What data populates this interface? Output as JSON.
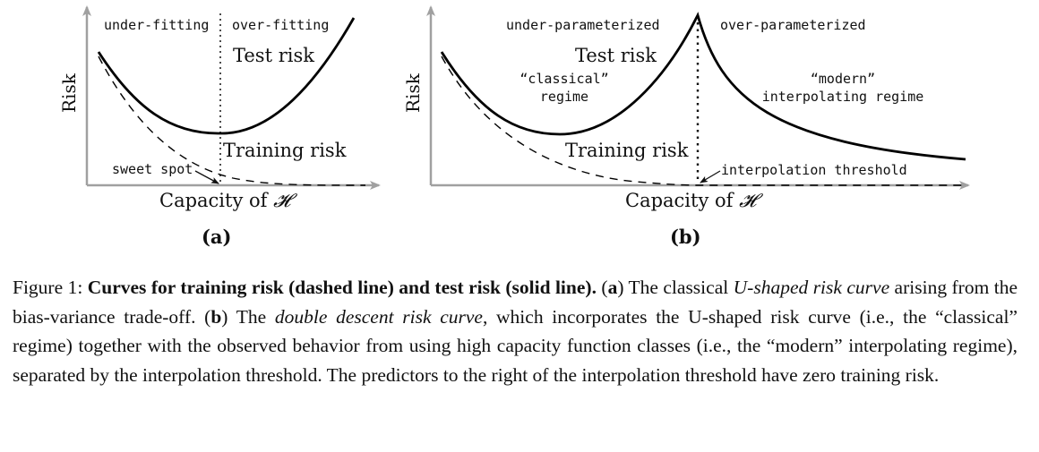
{
  "figure": {
    "panel_a": {
      "label": "(a)",
      "ylabel": "Risk",
      "xlabel_prefix": "Capacity of ",
      "xlabel_symbol": "𝓗",
      "left_region": "under-fitting",
      "right_region": "over-fitting",
      "test_label": "Test risk",
      "train_label": "Training risk",
      "annotation": "sweet spot"
    },
    "panel_b": {
      "label": "(b)",
      "ylabel": "Risk",
      "xlabel_prefix": "Capacity of ",
      "xlabel_symbol": "𝓗",
      "left_region": "under-parameterized",
      "right_region": "over-parameterized",
      "test_label": "Test risk",
      "train_label": "Training risk",
      "classical_line1": "“classical”",
      "classical_line2": "regime",
      "modern_line1": "“modern”",
      "modern_line2": "interpolating regime",
      "annotation": "interpolation threshold"
    }
  },
  "caption": {
    "prefix": "Figure 1: ",
    "bold_title": "Curves for training risk (dashed line) and test risk (solid line).",
    "a_open": " (",
    "a_letter": "a",
    "a_text": ") The classical ",
    "a_italic": "U-shaped risk curve",
    "a_rest": " arising from the bias-variance trade-off. (",
    "b_letter": "b",
    "b_text": ") The ",
    "b_italic": "double descent risk curve",
    "rest": ", which incorporates the U-shaped risk curve (i.e., the “classical” regime) together with the observed behavior from using high capacity function classes (i.e., the “modern” interpolating regime), separated by the interpolation threshold. The predictors to the right of the interpolation threshold have zero training risk."
  },
  "colors": {
    "axis": "#a0a0a0",
    "curve": "#000000",
    "text": "#111111"
  }
}
